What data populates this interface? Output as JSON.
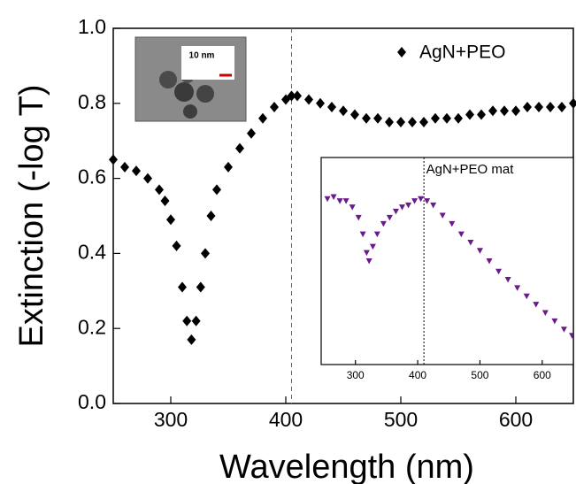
{
  "chart_data": [
    {
      "type": "scatter",
      "xlabel": "Wavelength (nm)",
      "ylabel": "Extinction (-log T)",
      "xlim": [
        250,
        650
      ],
      "ylim": [
        0,
        1.0
      ],
      "xticks": [
        300,
        400,
        500,
        600
      ],
      "yticks": [
        {
          "value": 0,
          "label": "0.0"
        },
        0.2,
        0.4,
        0.6,
        0.8,
        {
          "value": 1.0,
          "label": "1.0"
        }
      ],
      "vline": 405,
      "image_label": "10 nm",
      "series": [
        {
          "name": "AgN+PEO",
          "color": "#000000",
          "marker": "diamond",
          "x": [
            250,
            260,
            270,
            280,
            290,
            295,
            300,
            305,
            310,
            314,
            318,
            322,
            326,
            330,
            335,
            340,
            350,
            360,
            370,
            380,
            390,
            400,
            405,
            410,
            420,
            430,
            440,
            450,
            460,
            470,
            480,
            490,
            500,
            510,
            520,
            530,
            540,
            550,
            560,
            570,
            580,
            590,
            600,
            610,
            620,
            630,
            640,
            650
          ],
          "values": [
            0.65,
            0.63,
            0.62,
            0.6,
            0.57,
            0.54,
            0.49,
            0.42,
            0.31,
            0.22,
            0.17,
            0.22,
            0.31,
            0.4,
            0.5,
            0.57,
            0.63,
            0.68,
            0.72,
            0.76,
            0.79,
            0.81,
            0.82,
            0.82,
            0.81,
            0.8,
            0.79,
            0.78,
            0.77,
            0.76,
            0.76,
            0.75,
            0.75,
            0.75,
            0.75,
            0.76,
            0.76,
            0.76,
            0.77,
            0.77,
            0.78,
            0.78,
            0.78,
            0.79,
            0.79,
            0.79,
            0.79,
            0.8
          ]
        }
      ]
    },
    {
      "type": "scatter",
      "title": "AgN+PEO mat",
      "xlim": [
        245,
        650
      ],
      "ylim": [
        0,
        1
      ],
      "xticks": [
        300,
        400,
        500,
        600
      ],
      "vline": 410,
      "series": [
        {
          "color": "#6a1a8a",
          "marker": "triangle-down",
          "x": [
            255,
            265,
            275,
            285,
            295,
            305,
            312,
            318,
            322,
            328,
            335,
            345,
            355,
            365,
            375,
            385,
            395,
            405,
            415,
            425,
            440,
            455,
            470,
            485,
            500,
            515,
            530,
            545,
            560,
            575,
            590,
            605,
            620,
            635,
            648
          ],
          "values": [
            0.8,
            0.81,
            0.79,
            0.79,
            0.76,
            0.71,
            0.63,
            0.54,
            0.5,
            0.57,
            0.63,
            0.68,
            0.71,
            0.74,
            0.76,
            0.77,
            0.79,
            0.8,
            0.79,
            0.77,
            0.72,
            0.68,
            0.63,
            0.59,
            0.55,
            0.5,
            0.45,
            0.41,
            0.37,
            0.33,
            0.29,
            0.25,
            0.21,
            0.17,
            0.14
          ]
        }
      ]
    }
  ]
}
